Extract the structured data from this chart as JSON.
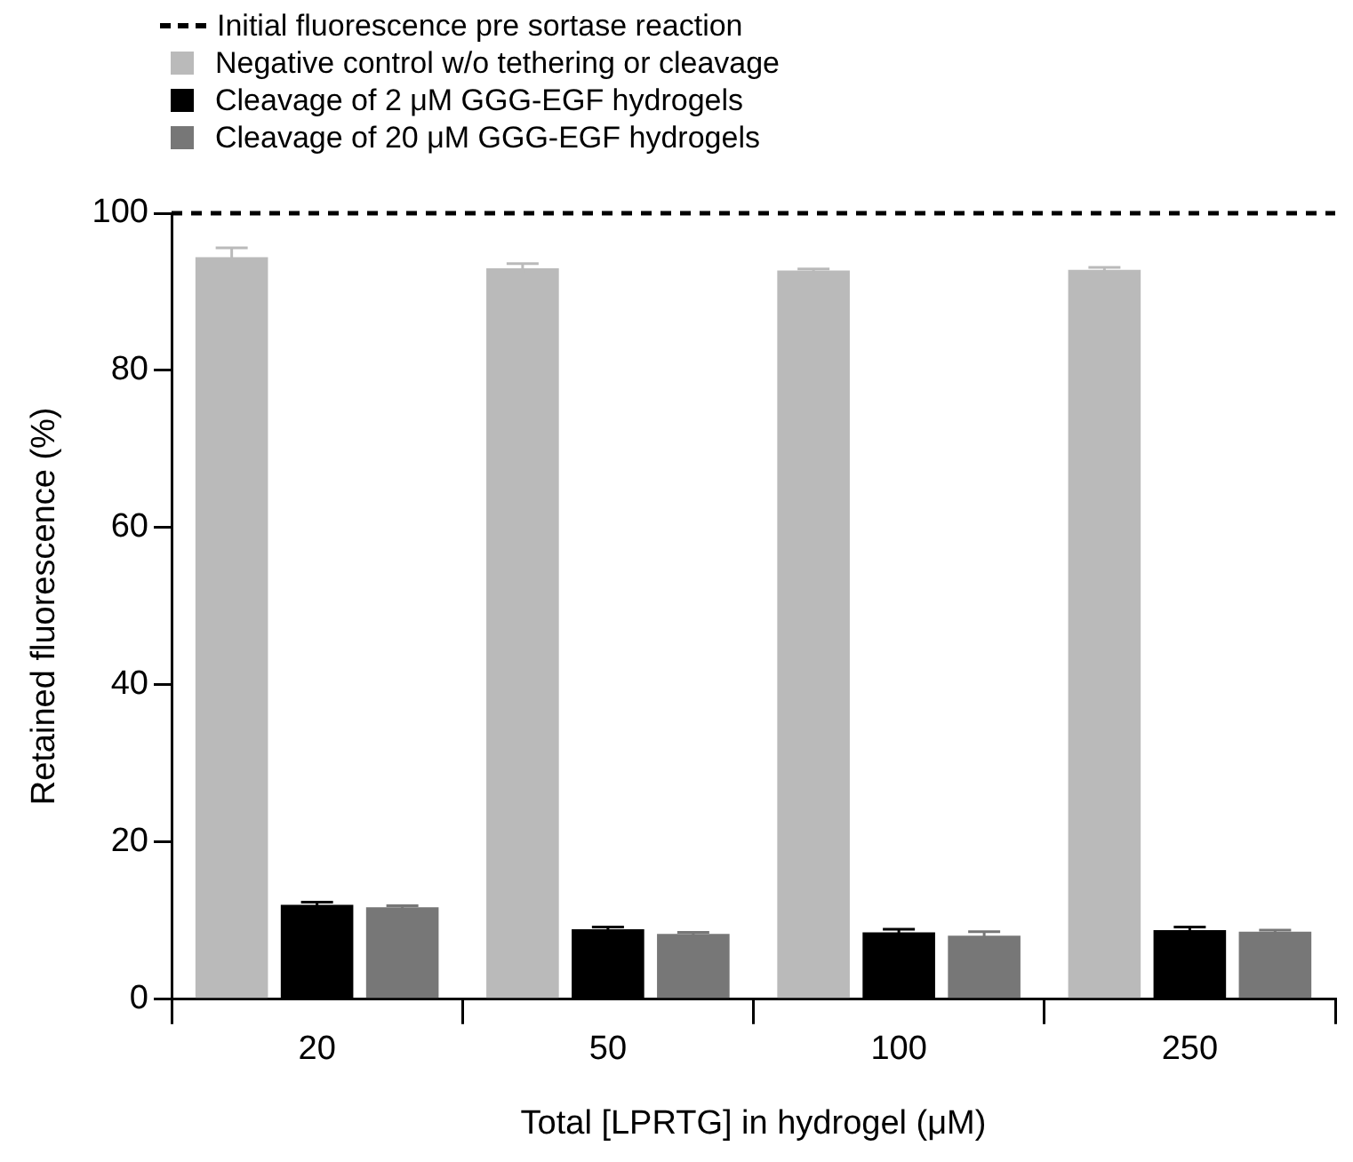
{
  "chart_data": {
    "type": "bar",
    "xlabel": "Total [LPRTG] in hydrogel (μM)",
    "ylabel": "Retained fluorescence (%)",
    "categories": [
      "20",
      "50",
      "100",
      "250"
    ],
    "series": [
      {
        "name": "Negative control w/o tethering or cleavage",
        "color": "#bababa",
        "values": [
          94.4,
          93.0,
          92.7,
          92.8
        ],
        "errors": [
          1.2,
          0.6,
          0.2,
          0.3
        ]
      },
      {
        "name": "Cleavage of 2 μM GGG-EGF hydrogels",
        "color": "#000000",
        "values": [
          12.0,
          8.9,
          8.5,
          8.8
        ],
        "errors": [
          0.35,
          0.3,
          0.4,
          0.4
        ]
      },
      {
        "name": "Cleavage of 20 μM GGG-EGF hydrogels",
        "color": "#777777",
        "values": [
          11.7,
          8.3,
          8.1,
          8.6
        ],
        "errors": [
          0.2,
          0.2,
          0.5,
          0.2
        ]
      }
    ],
    "ylim": [
      0,
      100
    ],
    "yticks": [
      0,
      20,
      40,
      60,
      80,
      100
    ],
    "grid": false,
    "legend": "top left",
    "ref_lines": [
      {
        "axis": "y",
        "value": 100,
        "label": "Initial fluorescence pre sortase reaction",
        "color": "#000000",
        "line_style": "dashed"
      }
    ]
  }
}
